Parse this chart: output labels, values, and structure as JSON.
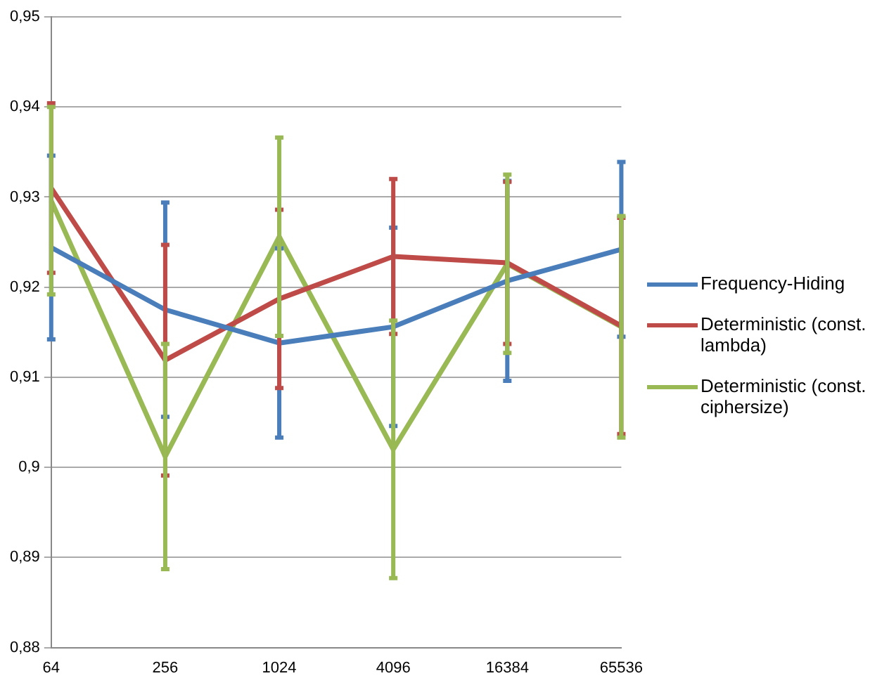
{
  "chart_data": {
    "type": "line",
    "categories": [
      "64",
      "256",
      "1024",
      "4096",
      "16384",
      "65536"
    ],
    "series": [
      {
        "name": "Frequency-Hiding",
        "color": "#4a7ebb",
        "values": [
          0.9244,
          0.9175,
          0.9138,
          0.9156,
          0.9207,
          0.9242
        ],
        "errors": [
          0.0102,
          0.0119,
          0.0105,
          0.011,
          0.0111,
          0.0097
        ]
      },
      {
        "name": "Deterministic (const. lambda)",
        "color": "#be4b48",
        "values": [
          0.931,
          0.9119,
          0.9187,
          0.9234,
          0.9227,
          0.9157
        ],
        "errors": [
          0.0094,
          0.0128,
          0.0099,
          0.0086,
          0.009,
          0.012
        ]
      },
      {
        "name": "Deterministic (const. ciphersize)",
        "color": "#98b954",
        "values": [
          0.9296,
          0.9012,
          0.9256,
          0.902,
          0.9226,
          0.9156
        ],
        "errors": [
          0.0104,
          0.0125,
          0.011,
          0.0143,
          0.0099,
          0.0123
        ]
      }
    ],
    "ylim": [
      0.88,
      0.95
    ],
    "yticks": [
      {
        "value": 0.88,
        "label": "0,88"
      },
      {
        "value": 0.89,
        "label": "0,89"
      },
      {
        "value": 0.9,
        "label": "0,9"
      },
      {
        "value": 0.91,
        "label": "0,91"
      },
      {
        "value": 0.92,
        "label": "0,92"
      },
      {
        "value": 0.93,
        "label": "0,93"
      },
      {
        "value": 0.94,
        "label": "0,94"
      },
      {
        "value": 0.95,
        "label": "0,95"
      }
    ],
    "grid": "y",
    "legend": "right",
    "marker": "none",
    "line_style": "solid"
  }
}
